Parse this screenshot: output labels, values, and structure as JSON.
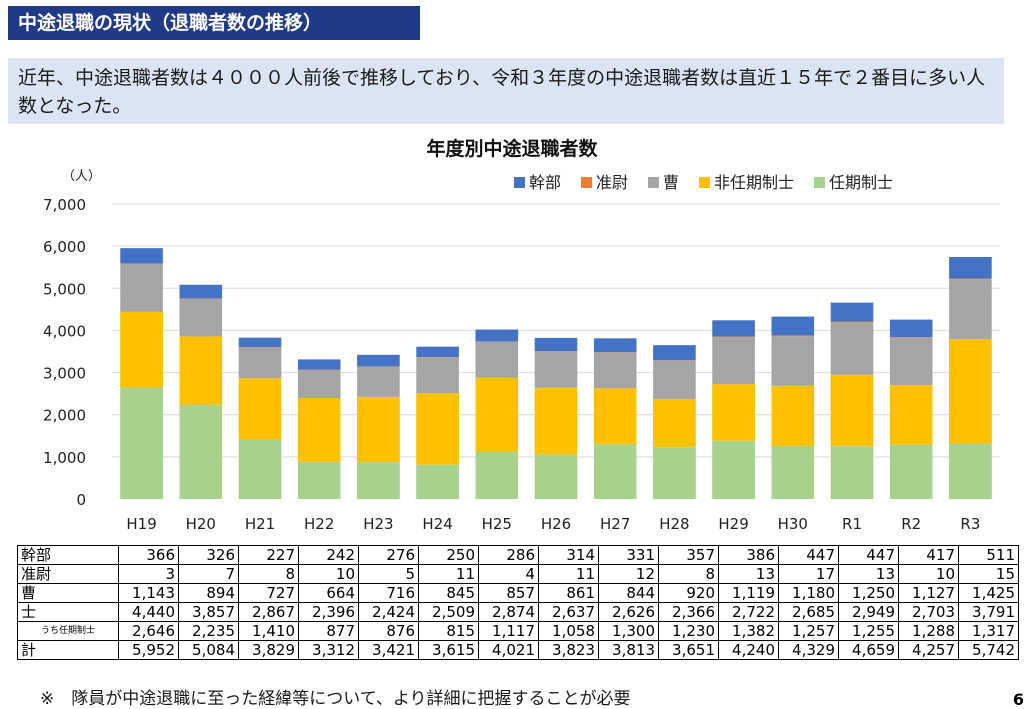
{
  "header": {
    "title": "中途退職の現状（退職者数の推移）"
  },
  "summary": "近年、中途退職者数は４０００人前後で推移しており、令和３年度の中途退職者数は直近１５年で２番目に多い人数となった。",
  "footnote": "※　隊員が中途退職に至った経緯等について、より詳細に把握することが必要",
  "page_number": "6",
  "chart_data": {
    "type": "bar",
    "stacked": true,
    "title": "年度別中途退職者数",
    "ylabel": "（人）",
    "ylim": [
      0,
      7000
    ],
    "yticks": [
      "0",
      "1,000",
      "2,000",
      "3,000",
      "4,000",
      "5,000",
      "6,000",
      "7,000"
    ],
    "ytick_values": [
      0,
      1000,
      2000,
      3000,
      4000,
      5000,
      6000,
      7000
    ],
    "grid": true,
    "legend_position": "top-right",
    "categories": [
      "H19",
      "H20",
      "H21",
      "H22",
      "H23",
      "H24",
      "H25",
      "H26",
      "H27",
      "H28",
      "H29",
      "H30",
      "R1",
      "R2",
      "R3"
    ],
    "series": [
      {
        "name": "任期制士",
        "color": "#a9d18e",
        "values": [
          2646,
          2235,
          1410,
          877,
          876,
          815,
          1117,
          1058,
          1300,
          1230,
          1382,
          1257,
          1255,
          1288,
          1317
        ]
      },
      {
        "name": "非任期制士",
        "color": "#ffc000",
        "values": [
          1794,
          1622,
          1457,
          1519,
          1548,
          1694,
          1757,
          1579,
          1326,
          1136,
          1340,
          1428,
          1694,
          1415,
          2474
        ]
      },
      {
        "name": "曹",
        "color": "#a5a5a5",
        "values": [
          1143,
          894,
          727,
          664,
          716,
          845,
          857,
          861,
          844,
          920,
          1119,
          1180,
          1250,
          1127,
          1425
        ]
      },
      {
        "name": "准尉",
        "color": "#ed7d31",
        "values": [
          3,
          7,
          8,
          10,
          5,
          11,
          4,
          11,
          12,
          8,
          13,
          17,
          13,
          10,
          15
        ]
      },
      {
        "name": "幹部",
        "color": "#4472c4",
        "values": [
          366,
          326,
          227,
          242,
          276,
          250,
          286,
          314,
          331,
          357,
          386,
          447,
          447,
          417,
          511
        ]
      }
    ],
    "legend_order": [
      "幹部",
      "准尉",
      "曹",
      "非任期制士",
      "任期制士"
    ]
  },
  "table": {
    "rows": [
      {
        "label": "幹部",
        "values": [
          "366",
          "326",
          "227",
          "242",
          "276",
          "250",
          "286",
          "314",
          "331",
          "357",
          "386",
          "447",
          "447",
          "417",
          "511"
        ]
      },
      {
        "label": "准尉",
        "values": [
          "3",
          "7",
          "8",
          "10",
          "5",
          "11",
          "4",
          "11",
          "12",
          "8",
          "13",
          "17",
          "13",
          "10",
          "15"
        ]
      },
      {
        "label": "曹",
        "values": [
          "1,143",
          "894",
          "727",
          "664",
          "716",
          "845",
          "857",
          "861",
          "844",
          "920",
          "1,119",
          "1,180",
          "1,250",
          "1,127",
          "1,425"
        ]
      },
      {
        "label": "士",
        "values": [
          "4,440",
          "3,857",
          "2,867",
          "2,396",
          "2,424",
          "2,509",
          "2,874",
          "2,637",
          "2,626",
          "2,366",
          "2,722",
          "2,685",
          "2,949",
          "2,703",
          "3,791"
        ]
      },
      {
        "label": "うち任期制士",
        "sub": true,
        "values": [
          "2,646",
          "2,235",
          "1,410",
          "877",
          "876",
          "815",
          "1,117",
          "1,058",
          "1,300",
          "1,230",
          "1,382",
          "1,257",
          "1,255",
          "1,288",
          "1,317"
        ]
      },
      {
        "label": "計",
        "values": [
          "5,952",
          "5,084",
          "3,829",
          "3,312",
          "3,421",
          "3,615",
          "4,021",
          "3,823",
          "3,813",
          "3,651",
          "4,240",
          "4,329",
          "4,659",
          "4,257",
          "5,742"
        ]
      }
    ]
  }
}
